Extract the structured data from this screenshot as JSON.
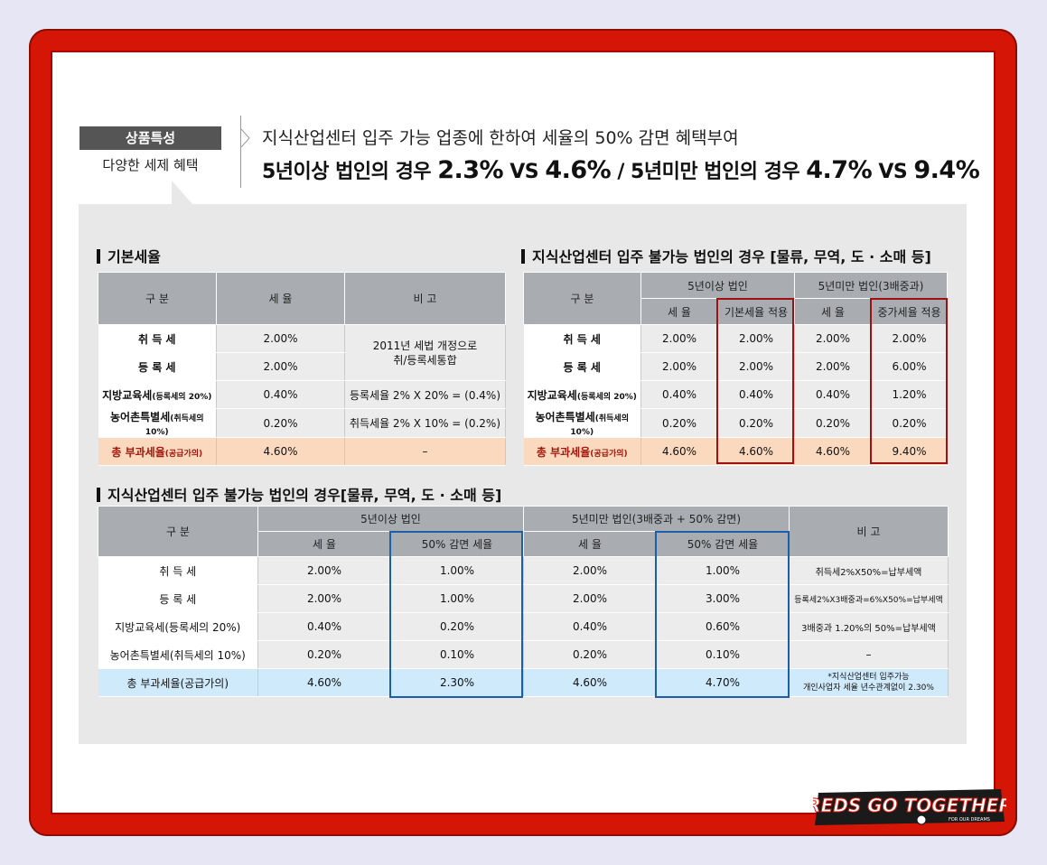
{
  "header": {
    "badge": "상품특성",
    "subtitle": "다양한 세제 혜택",
    "line1": "지식산업센터 입주 가능 업종에 한하여 세율의 50% 감면 혜택부여",
    "line2_a": "5년이상 법인의 경우 ",
    "line2_b": "2.3%",
    "line2_c": " VS ",
    "line2_d": "4.6%",
    "line2_e": " / 5년미만 법인의 경우 ",
    "line2_f": "4.7%",
    "line2_g": " VS ",
    "line2_h": "9.4%"
  },
  "table1": {
    "title": "기본세율",
    "headers": [
      "구  분",
      "세 율",
      "비  고"
    ],
    "rows": [
      {
        "label": "취 득 세",
        "rate": "2.00%",
        "note": "2011년 세법 개정으로\n취/등록세통합"
      },
      {
        "label": "등 록 세",
        "rate": "2.00%"
      },
      {
        "label": "지방교육세",
        "label_small": "(등록세의 20%)",
        "rate": "0.40%",
        "note": "등록세율 2% X 20% = (0.4%)"
      },
      {
        "label": "농어촌특별세",
        "label_small": "(취득세의 10%)",
        "rate": "0.20%",
        "note": "취득세율 2% X 10% = (0.2%)"
      },
      {
        "label": "총 부과세율",
        "label_small": "(공급가의)",
        "rate": "4.60%",
        "note": "–"
      }
    ]
  },
  "table2": {
    "title": "지식산업센터 입주 불가능 법인의 경우 [물류, 무역, 도 · 소매 등]",
    "headers": {
      "cat": "구  분",
      "g1": "5년이상 법인",
      "g2": "5년미만 법인(3배중과)",
      "c1": "세 율",
      "c2": "기본세율 적용",
      "c3": "세 율",
      "c4": "중가세율 적용"
    },
    "rows": [
      {
        "label": "취 득 세",
        "v": [
          "2.00%",
          "2.00%",
          "2.00%",
          "2.00%"
        ]
      },
      {
        "label": "등 록 세",
        "v": [
          "2.00%",
          "2.00%",
          "2.00%",
          "6.00%"
        ]
      },
      {
        "label": "지방교육세",
        "label_small": "(등록세의 20%)",
        "v": [
          "0.40%",
          "0.40%",
          "0.40%",
          "1.20%"
        ]
      },
      {
        "label": "농어촌특별세",
        "label_small": "(취득세의 10%)",
        "v": [
          "0.20%",
          "0.20%",
          "0.20%",
          "0.20%"
        ]
      },
      {
        "label": "총 부과세율",
        "label_small": "(공급가의)",
        "v": [
          "4.60%",
          "4.60%",
          "4.60%",
          "9.40%"
        ]
      }
    ]
  },
  "table3": {
    "title": "지식산업센터 입주 불가능 법인의 경우[물류, 무역, 도 · 소매 등]",
    "headers": {
      "cat": "구  분",
      "g1": "5년이상 법인",
      "g2": "5년미만 법인(3배중과 + 50% 감면)",
      "note": "비  고",
      "c1": "세 율",
      "c2": "50% 감면 세율",
      "c3": "세 율",
      "c4": "50% 감면 세율"
    },
    "rows": [
      {
        "label": "취 득 세",
        "v": [
          "2.00%",
          "1.00%",
          "2.00%",
          "1.00%"
        ],
        "note": "취득세2%X50%=납부세액"
      },
      {
        "label": "등 록 세",
        "v": [
          "2.00%",
          "1.00%",
          "2.00%",
          "3.00%"
        ],
        "note": "등록세2%X3배중과=6%X50%=납부세액"
      },
      {
        "label": "지방교육세(등록세의 20%)",
        "v": [
          "0.40%",
          "0.20%",
          "0.40%",
          "0.60%"
        ],
        "note": "3배중과 1.20%의 50%=납부세액"
      },
      {
        "label": "농어촌특별세(취득세의 10%)",
        "v": [
          "0.20%",
          "0.10%",
          "0.20%",
          "0.10%"
        ],
        "note": "–"
      },
      {
        "label": "총 부과세율(공급가의)",
        "v": [
          "4.60%",
          "2.30%",
          "4.60%",
          "4.70%"
        ],
        "note": "*지식산업센터 입주가능\n개인사업자 세율 년수관계없이 2.30%"
      }
    ]
  },
  "logo": {
    "text": "REDS GO TOGETHER",
    "tagline": "FOR OUR DREAMS"
  },
  "colors": {
    "frame": "#d51606",
    "panel": "#e8e8e8",
    "header_cell": "#a9adb2",
    "total_orange": "#fbd9be",
    "total_blue": "#cfeafa",
    "box_red": "#a01010",
    "box_blue": "#1a5fa8"
  }
}
